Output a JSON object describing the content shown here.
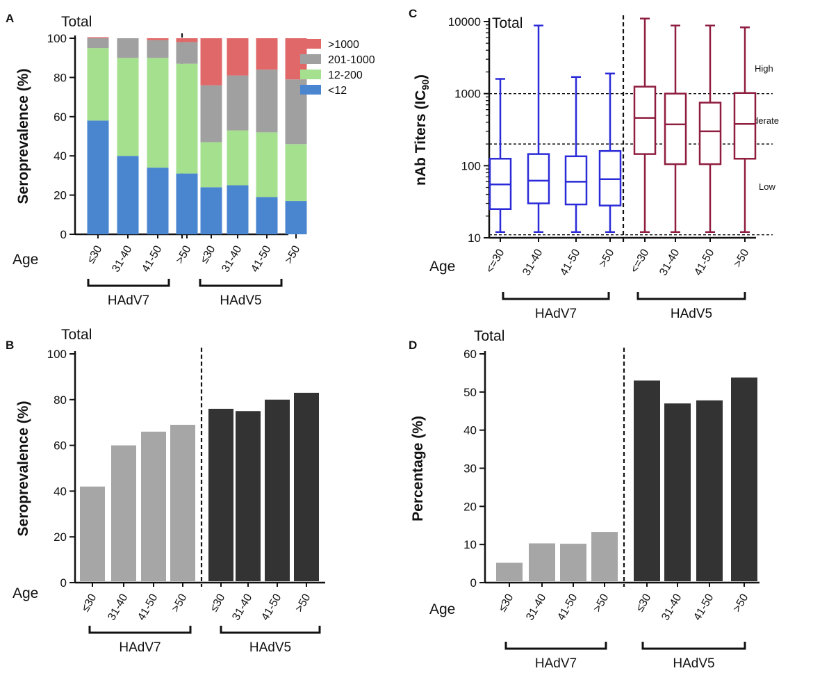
{
  "chart_data": [
    {
      "panel": "A",
      "type": "bar",
      "stacked": true,
      "title": "Total",
      "xlabel": "Age",
      "ylabel": "Seroprevalence (%)",
      "ylim": [
        0,
        100
      ],
      "yticks": [
        "0",
        "20",
        "40",
        "60",
        "80",
        "100"
      ],
      "categories": [
        "≤30",
        "31-40",
        "41-50",
        ">50",
        "≤30",
        "31-40",
        "41-50",
        ">50"
      ],
      "groups": [
        "HAdV7",
        "HAdV5"
      ],
      "legend_position": "top-right",
      "series": [
        {
          "name": "<12",
          "color": "#4a86d0",
          "values": [
            58,
            40,
            34,
            31,
            24,
            25,
            19,
            17
          ]
        },
        {
          "name": "12-200",
          "color": "#a5e08f",
          "values": [
            37,
            50,
            56,
            56,
            23,
            28,
            33,
            29
          ]
        },
        {
          "name": "201-1000",
          "color": "#a0a0a0",
          "values": [
            5,
            10,
            9,
            11,
            29,
            28,
            32,
            33
          ]
        },
        {
          "name": ">1000",
          "color": "#e06868",
          "values": [
            0.5,
            0,
            1,
            2,
            24,
            19,
            16,
            21
          ]
        }
      ]
    },
    {
      "panel": "B",
      "type": "bar",
      "title": "Total",
      "xlabel": "Age",
      "ylabel": "Seroprevalence (%)",
      "ylim": [
        0,
        100
      ],
      "yticks": [
        "0",
        "20",
        "40",
        "60",
        "80",
        "100"
      ],
      "categories": [
        "≤30",
        "31-40",
        "41-50",
        ">50",
        "≤30",
        "31-40",
        "41-50",
        ">50"
      ],
      "groups": [
        "HAdV7",
        "HAdV5"
      ],
      "values": [
        42,
        60,
        66,
        69,
        76,
        75,
        80,
        83
      ],
      "colors": [
        "#a6a6a6",
        "#a6a6a6",
        "#a6a6a6",
        "#a6a6a6",
        "#333333",
        "#333333",
        "#333333",
        "#333333"
      ]
    },
    {
      "panel": "C",
      "type": "boxplot",
      "title": "Total",
      "xlabel": "Age",
      "ylabel": "nAb Titers (IC",
      "ylabel_sub": "90",
      "ylabel_end": ")",
      "yscale": "log",
      "ylim": [
        10,
        10000
      ],
      "yticks": [
        "10",
        "100",
        "1000",
        "10000"
      ],
      "categories": [
        "<=30",
        "31-40",
        "41-50",
        ">50",
        "<=30",
        "31-40",
        "41-50",
        ">50"
      ],
      "groups": [
        "HAdV7",
        "HAdV5"
      ],
      "reference_lines": [
        11,
        200,
        1000
      ],
      "zones": [
        "High",
        "Moderate",
        "Low"
      ],
      "boxes": [
        {
          "min": 12,
          "q1": 25,
          "median": 55,
          "q3": 125,
          "max": 1600,
          "color": "#2a2ad8"
        },
        {
          "min": 12,
          "q1": 30,
          "median": 62,
          "q3": 145,
          "max": 8800,
          "color": "#2a2ad8"
        },
        {
          "min": 12,
          "q1": 29,
          "median": 60,
          "q3": 135,
          "max": 1700,
          "color": "#2a2ad8"
        },
        {
          "min": 12,
          "q1": 28,
          "median": 65,
          "q3": 160,
          "max": 1900,
          "color": "#2a2ad8"
        },
        {
          "min": 12,
          "q1": 145,
          "median": 460,
          "q3": 1250,
          "max": 11000,
          "color": "#8f1d3f"
        },
        {
          "min": 12,
          "q1": 105,
          "median": 375,
          "q3": 1000,
          "max": 8800,
          "color": "#8f1d3f"
        },
        {
          "min": 12,
          "q1": 105,
          "median": 300,
          "q3": 750,
          "max": 8800,
          "color": "#8f1d3f"
        },
        {
          "min": 12,
          "q1": 125,
          "median": 380,
          "q3": 1020,
          "max": 8300,
          "color": "#8f1d3f"
        }
      ]
    },
    {
      "panel": "D",
      "type": "bar",
      "title": "Total",
      "xlabel": "Age",
      "ylabel": "Percentage (%)",
      "ylim": [
        0,
        60
      ],
      "yticks": [
        "0",
        "10",
        "20",
        "30",
        "40",
        "50",
        "60"
      ],
      "categories": [
        "≤30",
        "31-40",
        "41-50",
        ">50",
        "≤30",
        "31-40",
        "41-50",
        ">50"
      ],
      "groups": [
        "HAdV7",
        "HAdV5"
      ],
      "values": [
        5.2,
        10.3,
        10.2,
        13.3,
        53,
        47,
        47.8,
        53.8
      ],
      "colors": [
        "#a6a6a6",
        "#a6a6a6",
        "#a6a6a6",
        "#a6a6a6",
        "#333333",
        "#333333",
        "#333333",
        "#333333"
      ]
    }
  ]
}
